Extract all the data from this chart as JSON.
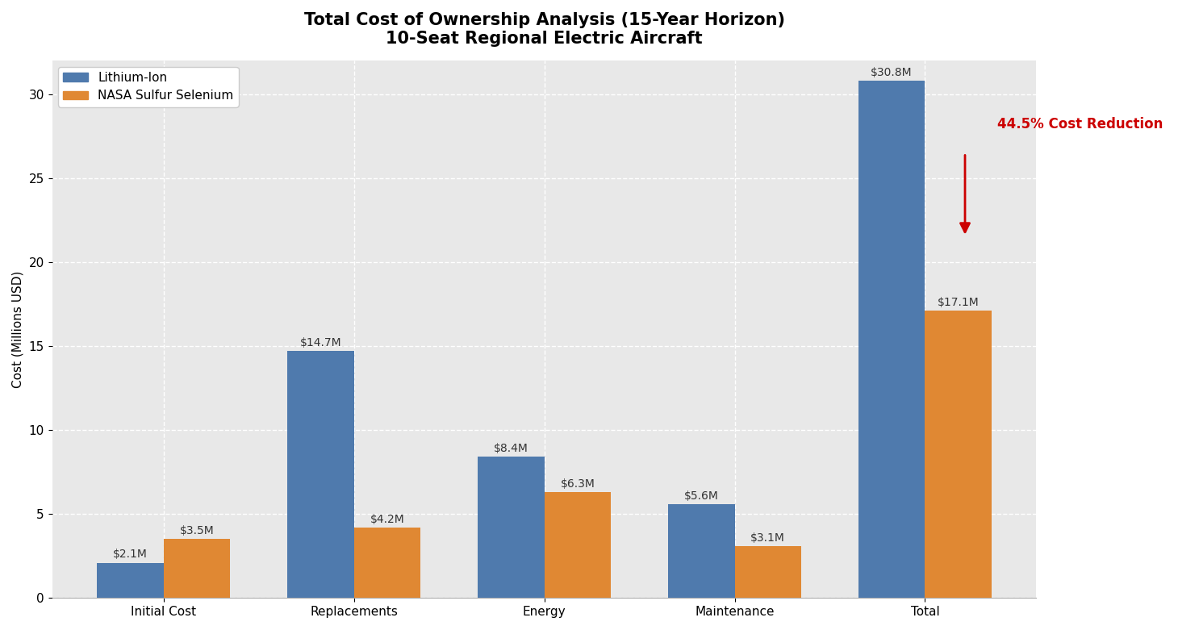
{
  "title_line1": "Total Cost of Ownership Analysis (15-Year Horizon)",
  "title_line2": "10-Seat Regional Electric Aircraft",
  "categories": [
    "Initial Cost",
    "Replacements",
    "Energy",
    "Maintenance",
    "Total"
  ],
  "lithium_ion_values": [
    2.1,
    14.7,
    8.4,
    5.6,
    30.8
  ],
  "nasa_ss_values": [
    3.5,
    4.2,
    6.3,
    3.1,
    17.1
  ],
  "lithium_ion_labels": [
    "$2.1M",
    "$14.7M",
    "$8.4M",
    "$5.6M",
    "$30.8M"
  ],
  "nasa_ss_labels": [
    "$3.5M",
    "$4.2M",
    "$6.3M",
    "$3.1M",
    "$17.1M"
  ],
  "lithium_ion_color": "#4f7aad",
  "nasa_ss_color": "#e08833",
  "figure_bg_color": "#ffffff",
  "plot_bg_color": "#e8e8e8",
  "grid_color": "#ffffff",
  "ylabel": "Cost (Millions USD)",
  "ylim": [
    0,
    32
  ],
  "yticks": [
    0,
    5,
    10,
    15,
    20,
    25,
    30
  ],
  "legend_labels": [
    "Lithium-Ion",
    "NASA Sulfur Selenium"
  ],
  "annotation_text": "44.5% Cost Reduction",
  "annotation_color": "#cc0000",
  "bar_width": 0.35,
  "title_fontsize": 15,
  "label_fontsize": 10,
  "tick_fontsize": 11,
  "legend_fontsize": 11
}
